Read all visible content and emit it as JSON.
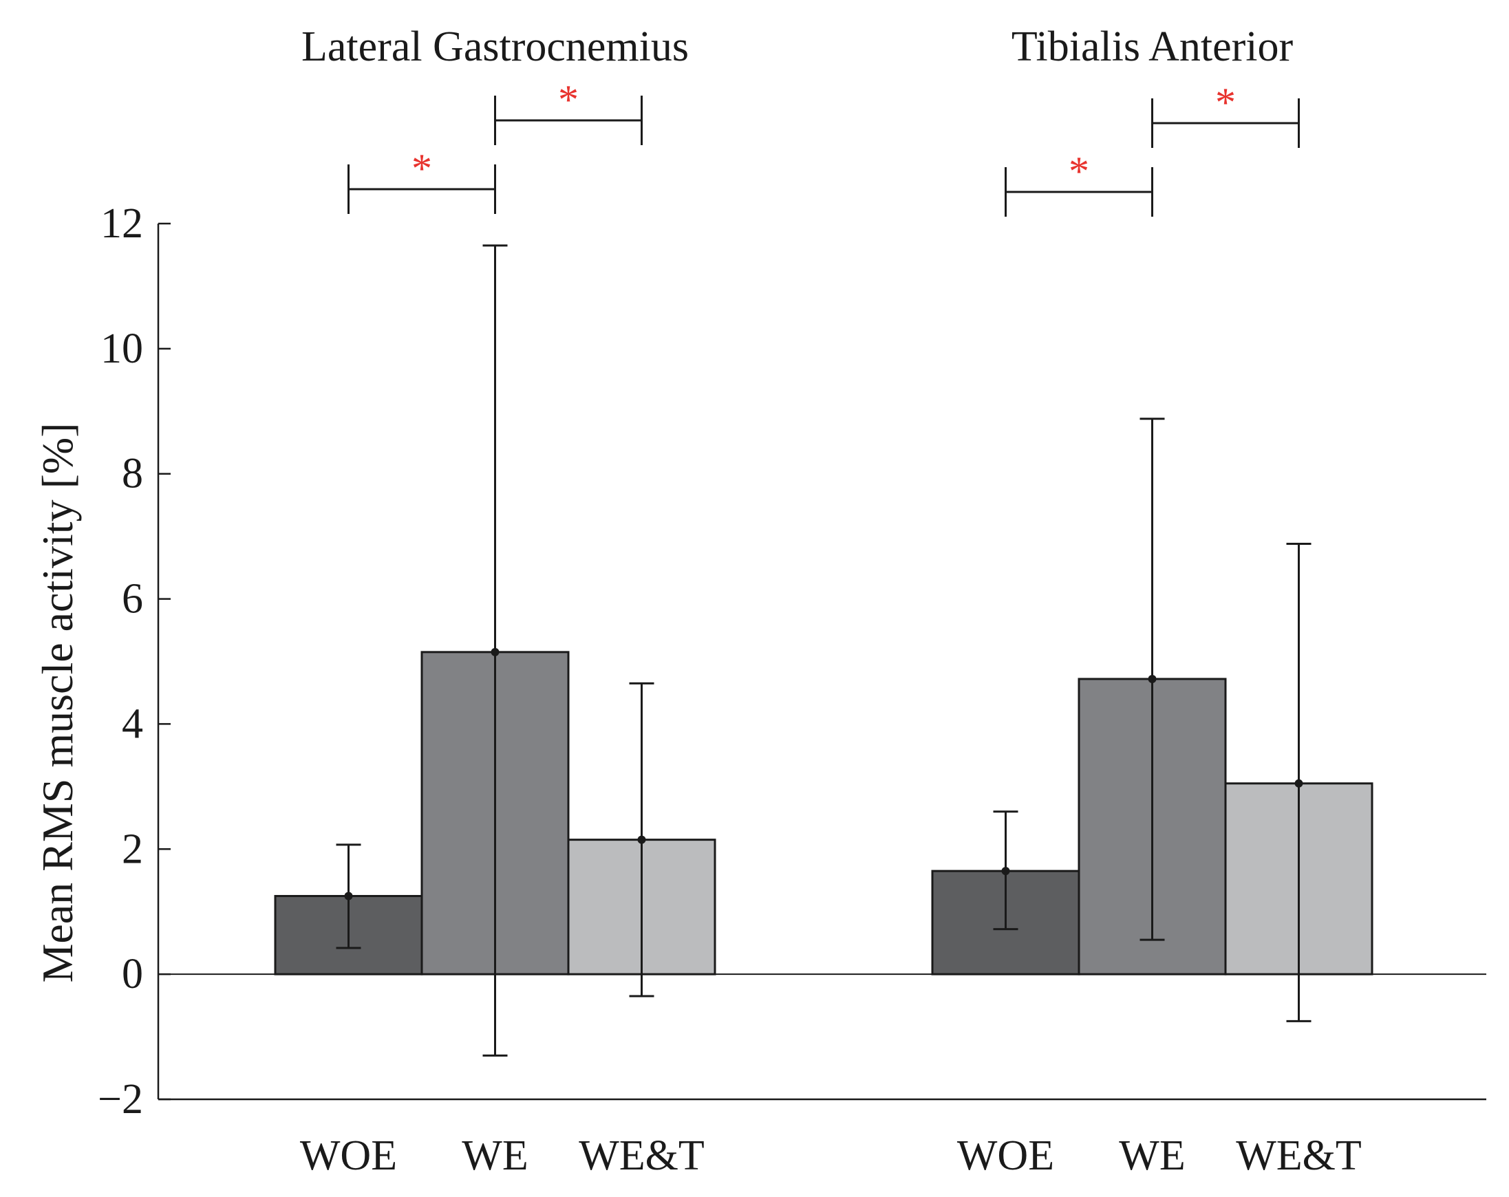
{
  "chart_data": {
    "type": "bar",
    "ylabel": "Mean RMS muscle activity  [%]",
    "ylim": [
      -2,
      12
    ],
    "yticks": [
      "−2",
      "0",
      "2",
      "4",
      "6",
      "8",
      "10",
      "12"
    ],
    "ytick_values": [
      -2,
      0,
      2,
      4,
      6,
      8,
      10,
      12
    ],
    "bar_colors": [
      "#5d5e60",
      "#818285",
      "#bbbcbe"
    ],
    "significance_color": "#e8332e",
    "groups": [
      {
        "title": "Lateral Gastrocnemius",
        "categories": [
          "WOE",
          "WE",
          "WE&T"
        ],
        "values": [
          1.25,
          5.15,
          2.15
        ],
        "error_low": [
          0.42,
          -1.3,
          -0.35
        ],
        "error_high": [
          2.07,
          11.65,
          4.65
        ],
        "significance": [
          {
            "from": 0,
            "to": 1,
            "label": "*"
          },
          {
            "from": 1,
            "to": 2,
            "label": "*"
          }
        ]
      },
      {
        "title": "Tibialis Anterior",
        "categories": [
          "WOE",
          "WE",
          "WE&T"
        ],
        "values": [
          1.65,
          4.72,
          3.05
        ],
        "error_low": [
          0.72,
          0.55,
          -0.75
        ],
        "error_high": [
          2.6,
          8.88,
          6.88
        ],
        "significance": [
          {
            "from": 0,
            "to": 1,
            "label": "*"
          },
          {
            "from": 1,
            "to": 2,
            "label": "*"
          }
        ]
      }
    ]
  }
}
